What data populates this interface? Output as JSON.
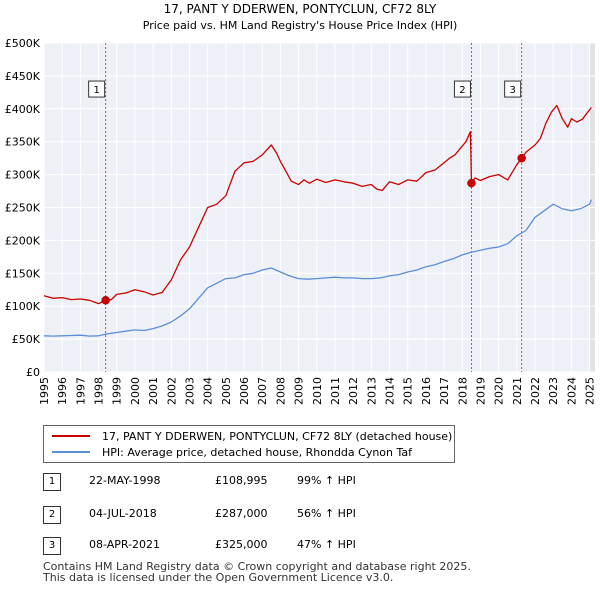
{
  "chart_data": {
    "type": "line",
    "title": "17, PANT Y DDERWEN, PONTYCLUN, CF72 8LY",
    "subtitle": "Price paid vs. HM Land Registry's House Price Index (HPI)",
    "xlabel": "",
    "ylabel": "",
    "xlim": [
      1995,
      2025.3
    ],
    "ylim": [
      0,
      500000
    ],
    "y_ticks": [
      0,
      50000,
      100000,
      150000,
      200000,
      250000,
      300000,
      350000,
      400000,
      450000,
      500000
    ],
    "y_tick_labels": [
      "£0",
      "£50K",
      "£100K",
      "£150K",
      "£200K",
      "£250K",
      "£300K",
      "£350K",
      "£400K",
      "£450K",
      "£500K"
    ],
    "x_ticks": [
      1995,
      1996,
      1997,
      1998,
      1999,
      2000,
      2001,
      2002,
      2003,
      2004,
      2005,
      2006,
      2007,
      2008,
      2009,
      2010,
      2011,
      2012,
      2013,
      2014,
      2015,
      2016,
      2017,
      2018,
      2019,
      2020,
      2021,
      2022,
      2023,
      2024,
      2025
    ],
    "x_tick_labels": [
      "1995",
      "1996",
      "1997",
      "1998",
      "1999",
      "2000",
      "2001",
      "2002",
      "2003",
      "2004",
      "2005",
      "2006",
      "2007",
      "2008",
      "2009",
      "2010",
      "2011",
      "2012",
      "2013",
      "2014",
      "2015",
      "2016",
      "2017",
      "2018",
      "2019",
      "2020",
      "2021",
      "2022",
      "2023",
      "2024",
      "2025"
    ],
    "grid": true,
    "series": [
      {
        "name": "17, PANT Y DDERWEN, PONTYCLUN, CF72 8LY (detached house)",
        "color": "#cc0000",
        "x": [
          1995.0,
          1995.5,
          1996.0,
          1996.5,
          1997.0,
          1997.5,
          1998.0,
          1998.39,
          1998.7,
          1999.0,
          1999.5,
          2000.0,
          2000.5,
          2001.0,
          2001.5,
          2002.0,
          2002.5,
          2003.0,
          2003.5,
          2004.0,
          2004.5,
          2005.0,
          2005.5,
          2006.0,
          2006.5,
          2007.0,
          2007.5,
          2007.8,
          2008.0,
          2008.3,
          2008.6,
          2009.0,
          2009.3,
          2009.6,
          2010.0,
          2010.5,
          2011.0,
          2011.5,
          2012.0,
          2012.5,
          2013.0,
          2013.3,
          2013.6,
          2014.0,
          2014.5,
          2015.0,
          2015.5,
          2016.0,
          2016.5,
          2017.0,
          2017.3,
          2017.6,
          2017.9,
          2018.2,
          2018.45,
          2018.506,
          2018.7,
          2019.0,
          2019.5,
          2020.0,
          2020.5,
          2021.0,
          2021.267,
          2021.5,
          2022.0,
          2022.3,
          2022.6,
          2022.9,
          2023.2,
          2023.5,
          2023.8,
          2024.0,
          2024.3,
          2024.6,
          2024.9,
          2025.1
        ],
        "values": [
          116000,
          112000,
          113000,
          110000,
          111000,
          109000,
          104000,
          108995,
          110000,
          118000,
          120000,
          125000,
          122000,
          117000,
          121000,
          140000,
          170000,
          190000,
          220000,
          250000,
          255000,
          268000,
          305000,
          318000,
          320000,
          330000,
          345000,
          332000,
          320000,
          305000,
          290000,
          285000,
          292000,
          287000,
          293000,
          288000,
          292000,
          289000,
          287000,
          282000,
          285000,
          278000,
          276000,
          289000,
          285000,
          292000,
          290000,
          303000,
          307000,
          318000,
          325000,
          330000,
          340000,
          350000,
          365000,
          287000,
          295000,
          291000,
          297000,
          300000,
          292000,
          315000,
          325000,
          334000,
          345000,
          355000,
          378000,
          395000,
          405000,
          385000,
          372000,
          385000,
          380000,
          384000,
          395000,
          402000
        ]
      },
      {
        "name": "HPI: Average price, detached house, Rhondda Cynon Taf",
        "color": "#5b8ed6",
        "x": [
          1995.0,
          1995.5,
          1996.0,
          1996.5,
          1997.0,
          1997.5,
          1998.0,
          1998.5,
          1999.0,
          1999.5,
          2000.0,
          2000.5,
          2001.0,
          2001.5,
          2002.0,
          2002.5,
          2003.0,
          2003.5,
          2004.0,
          2004.5,
          2005.0,
          2005.5,
          2006.0,
          2006.5,
          2007.0,
          2007.5,
          2008.0,
          2008.5,
          2009.0,
          2009.5,
          2010.0,
          2010.5,
          2011.0,
          2011.5,
          2012.0,
          2012.5,
          2013.0,
          2013.5,
          2014.0,
          2014.5,
          2015.0,
          2015.5,
          2016.0,
          2016.5,
          2017.0,
          2017.5,
          2018.0,
          2018.5,
          2019.0,
          2019.5,
          2020.0,
          2020.5,
          2021.0,
          2021.5,
          2022.0,
          2022.5,
          2023.0,
          2023.5,
          2024.0,
          2024.5,
          2025.0,
          2025.1
        ],
        "values": [
          55000,
          54500,
          55000,
          55500,
          56000,
          54500,
          55000,
          58000,
          60000,
          62000,
          64000,
          63000,
          66000,
          70000,
          76000,
          85000,
          96000,
          112000,
          128000,
          135000,
          142000,
          143000,
          148000,
          150000,
          155000,
          158000,
          152000,
          146000,
          142000,
          141000,
          142000,
          143000,
          144000,
          143000,
          143000,
          142000,
          142000,
          143000,
          146000,
          148000,
          152000,
          155000,
          160000,
          163000,
          168000,
          172000,
          178000,
          182000,
          185000,
          188000,
          190000,
          195000,
          207000,
          215000,
          235000,
          245000,
          255000,
          248000,
          245000,
          248000,
          255000,
          262000
        ]
      }
    ],
    "markers": [
      {
        "label": "1",
        "x": 1998.39,
        "value": 108995,
        "box_y": 430000
      },
      {
        "label": "2",
        "x": 2018.506,
        "value": 287000,
        "box_y": 430000
      },
      {
        "label": "3",
        "x": 2021.267,
        "value": 325000,
        "box_y": 430000
      }
    ],
    "shade_end": 2025.0
  },
  "legend": {
    "entries": [
      {
        "label": "17, PANT Y DDERWEN, PONTYCLUN, CF72 8LY (detached house)",
        "color": "#cc0000"
      },
      {
        "label": "HPI: Average price, detached house, Rhondda Cynon Taf",
        "color": "#5b8ed6"
      }
    ]
  },
  "transactions": [
    {
      "num": "1",
      "date": "22-MAY-1998",
      "price": "£108,995",
      "hpi": "99% ↑ HPI"
    },
    {
      "num": "2",
      "date": "04-JUL-2018",
      "price": "£287,000",
      "hpi": "56% ↑ HPI"
    },
    {
      "num": "3",
      "date": "08-APR-2021",
      "price": "£325,000",
      "hpi": "47% ↑ HPI"
    }
  ],
  "footer": {
    "line1": "Contains HM Land Registry data © Crown copyright and database right 2025.",
    "line2": "This data is licensed under the Open Government Licence v3.0."
  }
}
